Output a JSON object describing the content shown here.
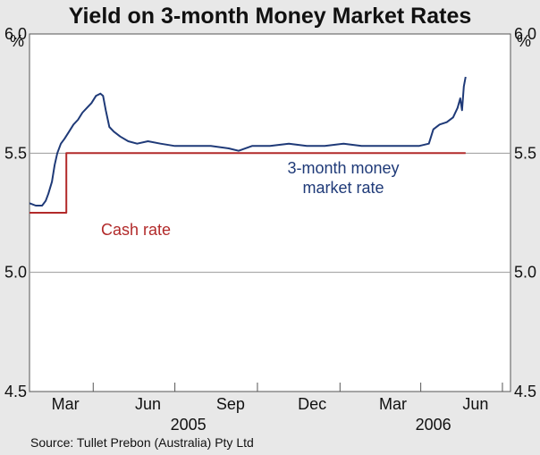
{
  "chart_data": {
    "type": "line",
    "title": "Yield on 3-month Money Market Rates",
    "units_left": "%",
    "units_right": "%",
    "ylim": [
      4.5,
      6.0
    ],
    "yticks": [
      "6.0",
      "5.5",
      "5.0",
      "4.5"
    ],
    "ytick_values": [
      6.0,
      5.5,
      5.0,
      4.5
    ],
    "xlim": [
      "2005-01-20",
      "2006-07-10"
    ],
    "grid": true,
    "x_month_labels": [
      {
        "label": "Mar",
        "date": "2005-03-01"
      },
      {
        "label": "Jun",
        "date": "2005-06-01"
      },
      {
        "label": "Sep",
        "date": "2005-09-01"
      },
      {
        "label": "Dec",
        "date": "2005-12-01"
      },
      {
        "label": "Mar",
        "date": "2006-03-01"
      },
      {
        "label": "Jun",
        "date": "2006-06-01"
      }
    ],
    "x_month_ticks": [
      "2005-01-01",
      "2005-04-01",
      "2005-07-01",
      "2005-10-01",
      "2006-01-01",
      "2006-04-01",
      "2006-07-01"
    ],
    "x_year_labels": [
      {
        "label": "2005",
        "date": "2005-07-16"
      },
      {
        "label": "2006",
        "date": "2006-04-15"
      }
    ],
    "series": [
      {
        "name": "3-month money market rate",
        "label_lines": [
          "3-month money",
          "market rate"
        ],
        "color": "#1f3a78",
        "points": [
          [
            "2005-01-20",
            5.29
          ],
          [
            "2005-01-27",
            5.28
          ],
          [
            "2005-02-03",
            5.28
          ],
          [
            "2005-02-07",
            5.3
          ],
          [
            "2005-02-10",
            5.33
          ],
          [
            "2005-02-14",
            5.38
          ],
          [
            "2005-02-17",
            5.45
          ],
          [
            "2005-02-20",
            5.5
          ],
          [
            "2005-02-24",
            5.54
          ],
          [
            "2005-02-28",
            5.56
          ],
          [
            "2005-03-05",
            5.59
          ],
          [
            "2005-03-10",
            5.62
          ],
          [
            "2005-03-15",
            5.64
          ],
          [
            "2005-03-20",
            5.67
          ],
          [
            "2005-03-25",
            5.69
          ],
          [
            "2005-03-30",
            5.71
          ],
          [
            "2005-04-04",
            5.74
          ],
          [
            "2005-04-09",
            5.75
          ],
          [
            "2005-04-12",
            5.74
          ],
          [
            "2005-04-15",
            5.68
          ],
          [
            "2005-04-19",
            5.61
          ],
          [
            "2005-04-24",
            5.59
          ],
          [
            "2005-05-01",
            5.57
          ],
          [
            "2005-05-10",
            5.55
          ],
          [
            "2005-05-20",
            5.54
          ],
          [
            "2005-06-01",
            5.55
          ],
          [
            "2005-06-15",
            5.54
          ],
          [
            "2005-07-01",
            5.53
          ],
          [
            "2005-07-20",
            5.53
          ],
          [
            "2005-08-10",
            5.53
          ],
          [
            "2005-08-30",
            5.52
          ],
          [
            "2005-09-10",
            5.51
          ],
          [
            "2005-09-25",
            5.53
          ],
          [
            "2005-10-15",
            5.53
          ],
          [
            "2005-11-05",
            5.54
          ],
          [
            "2005-11-25",
            5.53
          ],
          [
            "2005-12-15",
            5.53
          ],
          [
            "2006-01-05",
            5.54
          ],
          [
            "2006-01-25",
            5.53
          ],
          [
            "2006-02-15",
            5.53
          ],
          [
            "2006-03-10",
            5.53
          ],
          [
            "2006-03-30",
            5.53
          ],
          [
            "2006-04-10",
            5.54
          ],
          [
            "2006-04-15",
            5.6
          ],
          [
            "2006-04-22",
            5.62
          ],
          [
            "2006-04-30",
            5.63
          ],
          [
            "2006-05-07",
            5.65
          ],
          [
            "2006-05-12",
            5.69
          ],
          [
            "2006-05-15",
            5.73
          ],
          [
            "2006-05-17",
            5.68
          ],
          [
            "2006-05-19",
            5.78
          ],
          [
            "2006-05-21",
            5.82
          ]
        ]
      },
      {
        "name": "Cash rate",
        "label_lines": [
          "Cash rate"
        ],
        "color": "#b22a2a",
        "step": true,
        "points": [
          [
            "2005-01-20",
            5.25
          ],
          [
            "2005-03-02",
            5.25
          ],
          [
            "2005-03-02",
            5.5
          ],
          [
            "2006-05-21",
            5.5
          ]
        ]
      }
    ],
    "source": "Source: Tullet Prebon (Australia) Pty Ltd"
  }
}
